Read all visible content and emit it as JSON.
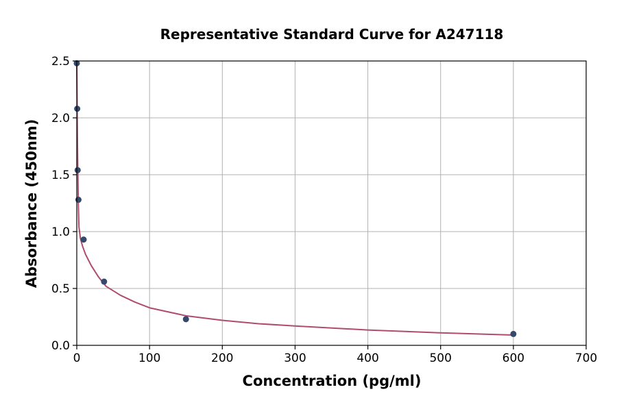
{
  "chart_data": {
    "type": "scatter",
    "title": "Representative Standard Curve for A247118",
    "xlabel": "Concentration (pg/ml)",
    "ylabel": "Absorbance (450nm)",
    "xlim": [
      0,
      700
    ],
    "ylim": [
      0,
      2.5
    ],
    "xticks": [
      0,
      100,
      200,
      300,
      400,
      500,
      600,
      700
    ],
    "xtick_labels": [
      "0",
      "100",
      "200",
      "300",
      "400",
      "500",
      "600",
      "700"
    ],
    "yticks": [
      0,
      0.5,
      1.0,
      1.5,
      2.0,
      2.5
    ],
    "ytick_labels": [
      "0.0",
      "0.5",
      "1.0",
      "1.5",
      "2.0",
      "2.5"
    ],
    "grid": true,
    "series": [
      {
        "kind": "points",
        "color": "#34496b",
        "x": [
          0,
          0.6,
          1.2,
          2.3,
          9.4,
          37.5,
          150,
          600
        ],
        "y": [
          2.48,
          2.08,
          1.54,
          1.28,
          0.93,
          0.56,
          0.23,
          0.1
        ]
      },
      {
        "kind": "fit-curve",
        "color": "#b04a6e",
        "x": [
          0,
          0.5,
          1,
          2,
          3,
          5,
          8,
          12,
          20,
          30,
          40,
          60,
          80,
          100,
          150,
          200,
          250,
          300,
          400,
          500,
          600
        ],
        "y": [
          2.5,
          2.12,
          1.75,
          1.28,
          1.04,
          0.94,
          0.87,
          0.8,
          0.7,
          0.6,
          0.52,
          0.44,
          0.38,
          0.33,
          0.26,
          0.22,
          0.19,
          0.17,
          0.135,
          0.11,
          0.09
        ]
      }
    ]
  }
}
